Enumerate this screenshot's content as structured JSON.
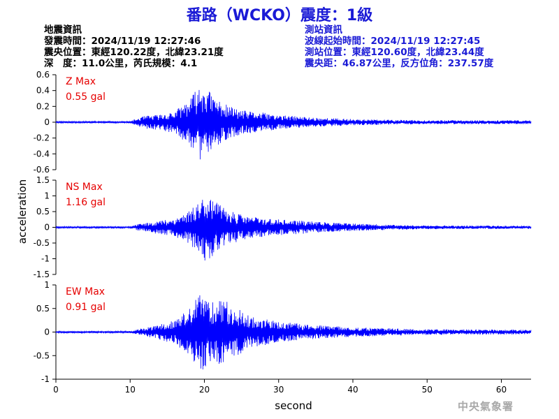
{
  "header": {
    "title": "番路（WCKO）震度：1級",
    "event_info": [
      "地震資訊",
      "發震時間：2024/11/19 12:27:46",
      "震央位置：東經120.22度，北緯23.21度",
      "深　度：11.0公里，芮氏規模：4.1"
    ],
    "station_info": [
      "測站資訊",
      "波線起始時間：2024/11/19 12:27:45",
      "測站位置：東經120.60度，北緯23.44度",
      "震央距：46.87公里，反方位角：237.57度"
    ]
  },
  "footer": {
    "credit": "中央氣象署"
  },
  "colors": {
    "title": "#1a1ad6",
    "trace": "#0000ff",
    "max_label": "#e60000",
    "axis": "#000000"
  },
  "chart_data": {
    "type": "line",
    "xlabel": "second",
    "ylabel": "acceleration",
    "xlim": [
      0,
      64
    ],
    "xticks": [
      0,
      10,
      20,
      30,
      40,
      50,
      60
    ],
    "grid": false,
    "panels": [
      {
        "component": "Z",
        "max_label": "Z Max",
        "max_value": "0.55 gal",
        "ylim": [
          -0.6,
          0.6
        ],
        "yticks": [
          0.6,
          0.4,
          0.2,
          0,
          -0.2,
          -0.4,
          -0.6
        ],
        "yticklabels": [
          "0.6",
          "0.4",
          "0.2",
          "0",
          "-0.2",
          "-0.4",
          "-0.6"
        ],
        "envelope": [
          [
            0,
            0.012
          ],
          [
            10,
            0.012
          ],
          [
            11,
            0.05
          ],
          [
            12,
            0.08
          ],
          [
            14,
            0.1
          ],
          [
            16,
            0.14
          ],
          [
            18,
            0.3
          ],
          [
            19.5,
            0.48
          ],
          [
            20,
            0.5
          ],
          [
            21,
            0.35
          ],
          [
            23,
            0.22
          ],
          [
            25,
            0.15
          ],
          [
            28,
            0.12
          ],
          [
            30,
            0.09
          ],
          [
            35,
            0.06
          ],
          [
            40,
            0.04
          ],
          [
            45,
            0.03
          ],
          [
            50,
            0.025
          ],
          [
            64,
            0.025
          ]
        ],
        "seed": 11
      },
      {
        "component": "NS",
        "max_label": "NS Max",
        "max_value": "1.16 gal",
        "ylim": [
          -1.5,
          1.5
        ],
        "yticks": [
          1.5,
          1,
          0.5,
          0,
          -0.5,
          -1,
          -1.5
        ],
        "yticklabels": [
          "1.5",
          "1",
          "0.5",
          "0",
          "-0.5",
          "-1",
          "-1.5"
        ],
        "envelope": [
          [
            0,
            0.03
          ],
          [
            10,
            0.03
          ],
          [
            11,
            0.1
          ],
          [
            13,
            0.18
          ],
          [
            16,
            0.3
          ],
          [
            18,
            0.55
          ],
          [
            19.5,
            0.95
          ],
          [
            20.5,
            1.15
          ],
          [
            21.5,
            0.8
          ],
          [
            23,
            0.6
          ],
          [
            25,
            0.4
          ],
          [
            28,
            0.3
          ],
          [
            30,
            0.25
          ],
          [
            35,
            0.18
          ],
          [
            40,
            0.12
          ],
          [
            45,
            0.08
          ],
          [
            50,
            0.06
          ],
          [
            64,
            0.05
          ]
        ],
        "seed": 23
      },
      {
        "component": "EW",
        "max_label": "EW Max",
        "max_value": "0.91 gal",
        "ylim": [
          -1,
          1
        ],
        "yticks": [
          1,
          0.5,
          0,
          -0.5,
          -1
        ],
        "yticklabels": [
          "1",
          "0.5",
          "0",
          "-0.5",
          "-1"
        ],
        "envelope": [
          [
            0,
            0.02
          ],
          [
            10,
            0.02
          ],
          [
            11,
            0.06
          ],
          [
            13,
            0.12
          ],
          [
            16,
            0.25
          ],
          [
            18,
            0.5
          ],
          [
            19.5,
            0.85
          ],
          [
            21,
            0.65
          ],
          [
            22.5,
            0.75
          ],
          [
            24,
            0.55
          ],
          [
            26,
            0.35
          ],
          [
            28,
            0.28
          ],
          [
            30,
            0.22
          ],
          [
            35,
            0.15
          ],
          [
            40,
            0.1
          ],
          [
            45,
            0.08
          ],
          [
            50,
            0.06
          ],
          [
            64,
            0.05
          ]
        ],
        "seed": 37
      }
    ]
  }
}
